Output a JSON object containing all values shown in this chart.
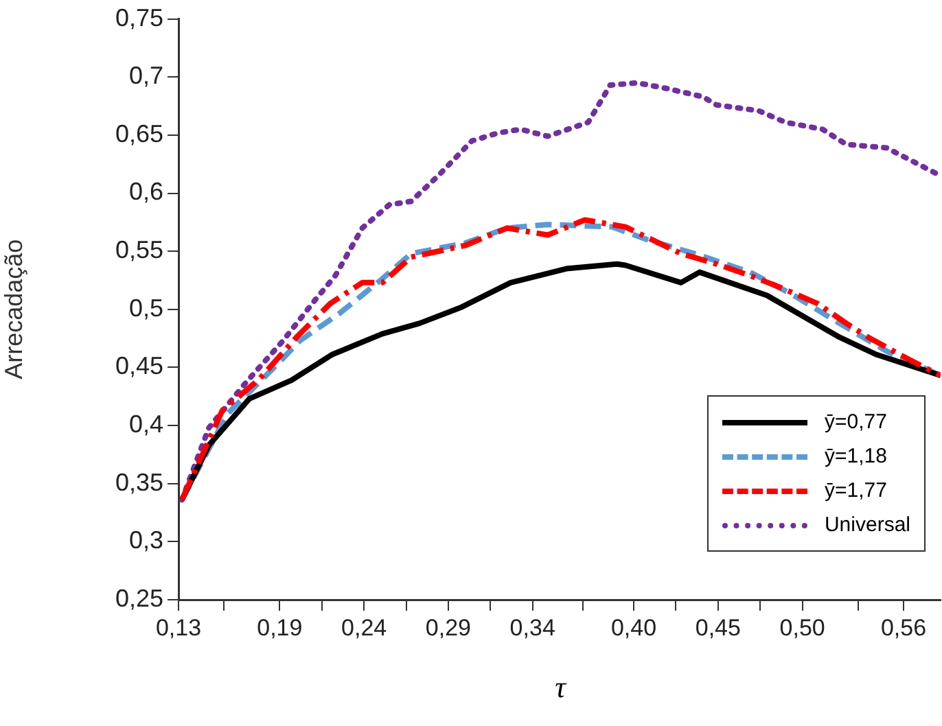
{
  "chart_data": {
    "type": "line",
    "xlabel": "τ",
    "ylabel": "Arrecadação",
    "xlim": [
      0.13,
      0.582
    ],
    "ylim": [
      0.25,
      0.75
    ],
    "xticks": [
      {
        "value": 0.13,
        "label": "0,13"
      },
      {
        "value": 0.156875,
        "label": null
      },
      {
        "value": 0.19,
        "label": "0,19"
      },
      {
        "value": 0.215,
        "label": null
      },
      {
        "value": 0.24,
        "label": "0,24"
      },
      {
        "value": 0.265,
        "label": null
      },
      {
        "value": 0.29,
        "label": "0,29"
      },
      {
        "value": 0.315,
        "label": null
      },
      {
        "value": 0.34,
        "label": "0,34"
      },
      {
        "value": 0.37,
        "label": null
      },
      {
        "value": 0.4,
        "label": "0,40"
      },
      {
        "value": 0.425,
        "label": null
      },
      {
        "value": 0.45,
        "label": "0,45"
      },
      {
        "value": 0.475,
        "label": null
      },
      {
        "value": 0.5,
        "label": "0,50"
      },
      {
        "value": 0.533125,
        "label": null
      },
      {
        "value": 0.56,
        "label": "0,56"
      }
    ],
    "yticks": [
      {
        "value": 0.25,
        "label": "0,25"
      },
      {
        "value": 0.3,
        "label": "0,3"
      },
      {
        "value": 0.35,
        "label": "0,35"
      },
      {
        "value": 0.4,
        "label": "0,4"
      },
      {
        "value": 0.45,
        "label": "0,45"
      },
      {
        "value": 0.5,
        "label": "0,5"
      },
      {
        "value": 0.55,
        "label": "0,55"
      },
      {
        "value": 0.6,
        "label": "0,6"
      },
      {
        "value": 0.65,
        "label": "0,65"
      },
      {
        "value": 0.7,
        "label": "0,7"
      },
      {
        "value": 0.75,
        "label": "0,75"
      }
    ],
    "grid": false,
    "legend": "bottom right",
    "marker": "none",
    "series": [
      {
        "name": "ȳ=0,77",
        "color": "#000000",
        "line_style": "solid",
        "x": [
          0.132,
          0.148,
          0.172,
          0.197,
          0.221,
          0.251,
          0.273,
          0.298,
          0.327,
          0.36,
          0.39,
          0.395,
          0.428,
          0.439,
          0.479,
          0.522,
          0.544,
          0.582
        ],
        "values": [
          0.336,
          0.383,
          0.423,
          0.439,
          0.461,
          0.479,
          0.488,
          0.502,
          0.523,
          0.535,
          0.539,
          0.538,
          0.523,
          0.532,
          0.512,
          0.476,
          0.461,
          0.443
        ]
      },
      {
        "name": "ȳ=1,18",
        "color": "#5b9bd5",
        "line_style": "dashed",
        "x": [
          0.132,
          0.159,
          0.186,
          0.202,
          0.225,
          0.249,
          0.268,
          0.3,
          0.325,
          0.349,
          0.387,
          0.408,
          0.436,
          0.469,
          0.495,
          0.522,
          0.55,
          0.582
        ],
        "values": [
          0.336,
          0.41,
          0.449,
          0.473,
          0.496,
          0.524,
          0.548,
          0.557,
          0.57,
          0.573,
          0.571,
          0.56,
          0.548,
          0.532,
          0.512,
          0.488,
          0.464,
          0.443
        ]
      },
      {
        "name": "ȳ=1,77",
        "color": "#ff0000",
        "line_style": "dashdot",
        "x": [
          0.132,
          0.156,
          0.178,
          0.2,
          0.22,
          0.239,
          0.251,
          0.268,
          0.3,
          0.325,
          0.349,
          0.371,
          0.395,
          0.428,
          0.447,
          0.469,
          0.485,
          0.509,
          0.526,
          0.539,
          0.563,
          0.582
        ],
        "values": [
          0.336,
          0.413,
          0.44,
          0.476,
          0.505,
          0.523,
          0.523,
          0.545,
          0.555,
          0.57,
          0.564,
          0.577,
          0.571,
          0.548,
          0.54,
          0.529,
          0.52,
          0.505,
          0.488,
          0.476,
          0.457,
          0.443
        ]
      },
      {
        "name": "Universal",
        "color": "#7030a0",
        "line_style": "dotted",
        "x": [
          0.132,
          0.148,
          0.17,
          0.192,
          0.211,
          0.223,
          0.239,
          0.255,
          0.268,
          0.284,
          0.304,
          0.32,
          0.333,
          0.349,
          0.365,
          0.373,
          0.382,
          0.386,
          0.402,
          0.42,
          0.441,
          0.449,
          0.474,
          0.49,
          0.512,
          0.526,
          0.55,
          0.566,
          0.574,
          0.582
        ],
        "values": [
          0.336,
          0.398,
          0.437,
          0.473,
          0.508,
          0.529,
          0.57,
          0.59,
          0.593,
          0.615,
          0.645,
          0.652,
          0.655,
          0.649,
          0.657,
          0.661,
          0.683,
          0.693,
          0.695,
          0.69,
          0.683,
          0.676,
          0.671,
          0.661,
          0.655,
          0.642,
          0.639,
          0.627,
          0.621,
          0.615
        ]
      }
    ]
  }
}
